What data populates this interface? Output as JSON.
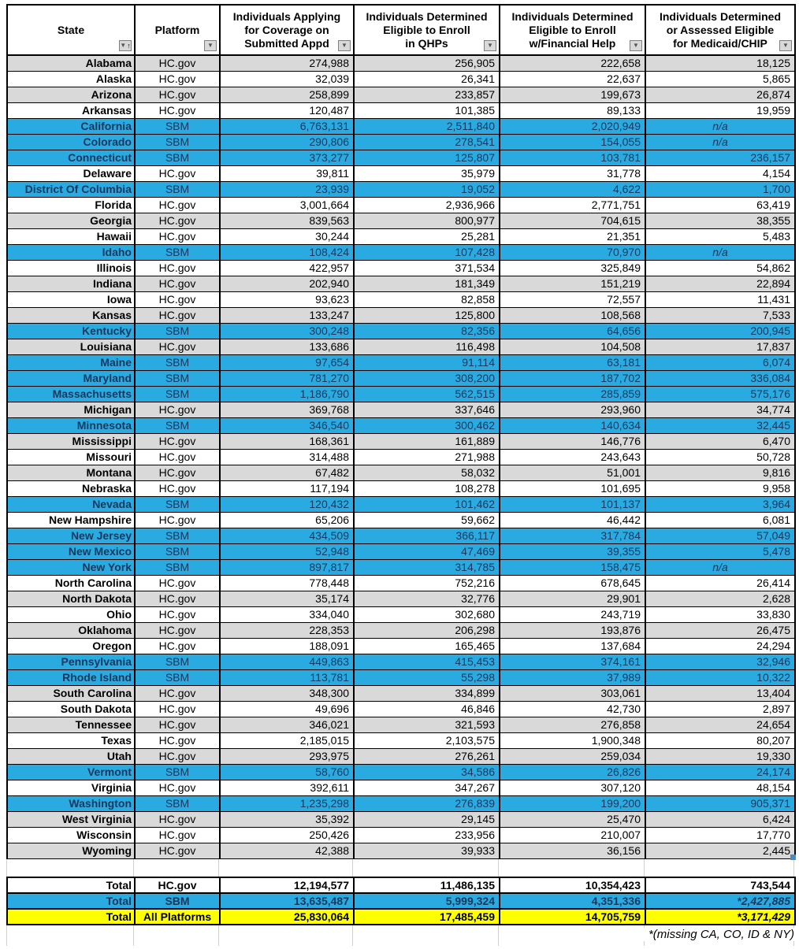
{
  "colors": {
    "row_blue": "#29abe2",
    "row_gray": "#d9d9d9",
    "total_yellow": "#ffff00",
    "blue_row_text": "#17375d",
    "border_black": "#000000",
    "faint_gridline": "#d0d0d0"
  },
  "header": {
    "columns": [
      {
        "id": "state",
        "lines": [
          "State"
        ],
        "filter": "sort-dropdown"
      },
      {
        "id": "platform",
        "lines": [
          "Platform"
        ],
        "filter": "dropdown"
      },
      {
        "id": "applying",
        "lines": [
          "Individuals Applying",
          "for Coverage on",
          "Submitted Appd"
        ],
        "filter": "dropdown"
      },
      {
        "id": "qhp",
        "lines": [
          "Individuals Determined",
          "Eligible to Enroll",
          "in QHPs"
        ],
        "filter": "dropdown"
      },
      {
        "id": "finhelp",
        "lines": [
          "Individuals Determined",
          "Eligible to Enroll",
          "w/Financial Help"
        ],
        "filter": "dropdown"
      },
      {
        "id": "medicaid",
        "lines": [
          "Individuals Determined",
          "or Assessed Eligible",
          "for Medicaid/CHIP"
        ],
        "filter": "dropdown"
      }
    ],
    "filter_icon": "▼",
    "sort_asc_icon": "↑"
  },
  "rows": [
    {
      "state": "Alabama",
      "platform": "HC.gov",
      "values": [
        "274,988",
        "256,905",
        "222,658",
        "18,125"
      ],
      "shade": "gray"
    },
    {
      "state": "Alaska",
      "platform": "HC.gov",
      "values": [
        "32,039",
        "26,341",
        "22,637",
        "5,865"
      ],
      "shade": "white"
    },
    {
      "state": "Arizona",
      "platform": "HC.gov",
      "values": [
        "258,899",
        "233,857",
        "199,673",
        "26,874"
      ],
      "shade": "gray"
    },
    {
      "state": "Arkansas",
      "platform": "HC.gov",
      "values": [
        "120,487",
        "101,385",
        "89,133",
        "19,959"
      ],
      "shade": "white"
    },
    {
      "state": "California",
      "platform": "SBM",
      "values": [
        "6,763,131",
        "2,511,840",
        "2,020,949",
        "n/a"
      ],
      "shade": "blue"
    },
    {
      "state": "Colorado",
      "platform": "SBM",
      "values": [
        "290,806",
        "278,541",
        "154,055",
        "n/a"
      ],
      "shade": "blue"
    },
    {
      "state": "Connecticut",
      "platform": "SBM",
      "values": [
        "373,277",
        "125,807",
        "103,781",
        "236,157"
      ],
      "shade": "blue"
    },
    {
      "state": "Delaware",
      "platform": "HC.gov",
      "values": [
        "39,811",
        "35,979",
        "31,778",
        "4,154"
      ],
      "shade": "white"
    },
    {
      "state": "District Of Columbia",
      "platform": "SBM",
      "values": [
        "23,939",
        "19,052",
        "4,622",
        "1,700"
      ],
      "shade": "blue"
    },
    {
      "state": "Florida",
      "platform": "HC.gov",
      "values": [
        "3,001,664",
        "2,936,966",
        "2,771,751",
        "63,419"
      ],
      "shade": "white"
    },
    {
      "state": "Georgia",
      "platform": "HC.gov",
      "values": [
        "839,563",
        "800,977",
        "704,615",
        "38,355"
      ],
      "shade": "gray"
    },
    {
      "state": "Hawaii",
      "platform": "HC.gov",
      "values": [
        "30,244",
        "25,281",
        "21,351",
        "5,483"
      ],
      "shade": "white"
    },
    {
      "state": "Idaho",
      "platform": "SBM",
      "values": [
        "108,424",
        "107,428",
        "70,970",
        "n/a"
      ],
      "shade": "blue"
    },
    {
      "state": "Illinois",
      "platform": "HC.gov",
      "values": [
        "422,957",
        "371,534",
        "325,849",
        "54,862"
      ],
      "shade": "white"
    },
    {
      "state": "Indiana",
      "platform": "HC.gov",
      "values": [
        "202,940",
        "181,349",
        "151,219",
        "22,894"
      ],
      "shade": "gray"
    },
    {
      "state": "Iowa",
      "platform": "HC.gov",
      "values": [
        "93,623",
        "82,858",
        "72,557",
        "11,431"
      ],
      "shade": "white"
    },
    {
      "state": "Kansas",
      "platform": "HC.gov",
      "values": [
        "133,247",
        "125,800",
        "108,568",
        "7,533"
      ],
      "shade": "gray"
    },
    {
      "state": "Kentucky",
      "platform": "SBM",
      "values": [
        "300,248",
        "82,356",
        "64,656",
        "200,945"
      ],
      "shade": "blue"
    },
    {
      "state": "Louisiana",
      "platform": "HC.gov",
      "values": [
        "133,686",
        "116,498",
        "104,508",
        "17,837"
      ],
      "shade": "gray"
    },
    {
      "state": "Maine",
      "platform": "SBM",
      "values": [
        "97,654",
        "91,114",
        "63,181",
        "6,074"
      ],
      "shade": "blue"
    },
    {
      "state": "Maryland",
      "platform": "SBM",
      "values": [
        "781,270",
        "308,200",
        "187,702",
        "336,084"
      ],
      "shade": "blue"
    },
    {
      "state": "Massachusetts",
      "platform": "SBM",
      "values": [
        "1,186,790",
        "562,515",
        "285,859",
        "575,176"
      ],
      "shade": "blue"
    },
    {
      "state": "Michigan",
      "platform": "HC.gov",
      "values": [
        "369,768",
        "337,646",
        "293,960",
        "34,774"
      ],
      "shade": "gray"
    },
    {
      "state": "Minnesota",
      "platform": "SBM",
      "values": [
        "346,540",
        "300,462",
        "140,634",
        "32,445"
      ],
      "shade": "blue"
    },
    {
      "state": "Mississippi",
      "platform": "HC.gov",
      "values": [
        "168,361",
        "161,889",
        "146,776",
        "6,470"
      ],
      "shade": "gray"
    },
    {
      "state": "Missouri",
      "platform": "HC.gov",
      "values": [
        "314,488",
        "271,988",
        "243,643",
        "50,728"
      ],
      "shade": "white"
    },
    {
      "state": "Montana",
      "platform": "HC.gov",
      "values": [
        "67,482",
        "58,032",
        "51,001",
        "9,816"
      ],
      "shade": "gray"
    },
    {
      "state": "Nebraska",
      "platform": "HC.gov",
      "values": [
        "117,194",
        "108,278",
        "101,695",
        "9,958"
      ],
      "shade": "white"
    },
    {
      "state": "Nevada",
      "platform": "SBM",
      "values": [
        "120,432",
        "101,462",
        "101,137",
        "3,964"
      ],
      "shade": "blue"
    },
    {
      "state": "New Hampshire",
      "platform": "HC.gov",
      "values": [
        "65,206",
        "59,662",
        "46,442",
        "6,081"
      ],
      "shade": "white"
    },
    {
      "state": "New Jersey",
      "platform": "SBM",
      "values": [
        "434,509",
        "366,117",
        "317,784",
        "57,049"
      ],
      "shade": "blue"
    },
    {
      "state": "New Mexico",
      "platform": "SBM",
      "values": [
        "52,948",
        "47,469",
        "39,355",
        "5,478"
      ],
      "shade": "blue"
    },
    {
      "state": "New York",
      "platform": "SBM",
      "values": [
        "897,817",
        "314,785",
        "158,475",
        "n/a"
      ],
      "shade": "blue"
    },
    {
      "state": "North Carolina",
      "platform": "HC.gov",
      "values": [
        "778,448",
        "752,216",
        "678,645",
        "26,414"
      ],
      "shade": "white"
    },
    {
      "state": "North Dakota",
      "platform": "HC.gov",
      "values": [
        "35,174",
        "32,776",
        "29,901",
        "2,628"
      ],
      "shade": "gray"
    },
    {
      "state": "Ohio",
      "platform": "HC.gov",
      "values": [
        "334,040",
        "302,680",
        "243,719",
        "33,830"
      ],
      "shade": "white"
    },
    {
      "state": "Oklahoma",
      "platform": "HC.gov",
      "values": [
        "228,353",
        "206,298",
        "193,876",
        "26,475"
      ],
      "shade": "gray"
    },
    {
      "state": "Oregon",
      "platform": "HC.gov",
      "values": [
        "188,091",
        "165,465",
        "137,684",
        "24,294"
      ],
      "shade": "white"
    },
    {
      "state": "Pennsylvania",
      "platform": "SBM",
      "values": [
        "449,863",
        "415,453",
        "374,161",
        "32,946"
      ],
      "shade": "blue"
    },
    {
      "state": "Rhode Island",
      "platform": "SBM",
      "values": [
        "113,781",
        "55,298",
        "37,989",
        "10,322"
      ],
      "shade": "blue"
    },
    {
      "state": "South Carolina",
      "platform": "HC.gov",
      "values": [
        "348,300",
        "334,899",
        "303,061",
        "13,404"
      ],
      "shade": "gray"
    },
    {
      "state": "South Dakota",
      "platform": "HC.gov",
      "values": [
        "49,696",
        "46,846",
        "42,730",
        "2,897"
      ],
      "shade": "white"
    },
    {
      "state": "Tennessee",
      "platform": "HC.gov",
      "values": [
        "346,021",
        "321,593",
        "276,858",
        "24,654"
      ],
      "shade": "gray"
    },
    {
      "state": "Texas",
      "platform": "HC.gov",
      "values": [
        "2,185,015",
        "2,103,575",
        "1,900,348",
        "80,207"
      ],
      "shade": "white"
    },
    {
      "state": "Utah",
      "platform": "HC.gov",
      "values": [
        "293,975",
        "276,261",
        "259,034",
        "19,330"
      ],
      "shade": "gray"
    },
    {
      "state": "Vermont",
      "platform": "SBM",
      "values": [
        "58,760",
        "34,586",
        "26,826",
        "24,174"
      ],
      "shade": "blue"
    },
    {
      "state": "Virginia",
      "platform": "HC.gov",
      "values": [
        "392,611",
        "347,267",
        "307,120",
        "48,154"
      ],
      "shade": "white"
    },
    {
      "state": "Washington",
      "platform": "SBM",
      "values": [
        "1,235,298",
        "276,839",
        "199,200",
        "905,371"
      ],
      "shade": "blue"
    },
    {
      "state": "West Virginia",
      "platform": "HC.gov",
      "values": [
        "35,392",
        "29,145",
        "25,470",
        "6,424"
      ],
      "shade": "gray"
    },
    {
      "state": "Wisconsin",
      "platform": "HC.gov",
      "values": [
        "250,426",
        "233,956",
        "210,007",
        "17,770"
      ],
      "shade": "white"
    },
    {
      "state": "Wyoming",
      "platform": "HC.gov",
      "values": [
        "42,388",
        "39,933",
        "36,156",
        "2,445"
      ],
      "shade": "gray"
    }
  ],
  "totals": [
    {
      "label": "Total",
      "platform": "HC.gov",
      "values": [
        "12,194,577",
        "11,486,135",
        "10,354,423",
        "743,544"
      ],
      "shade": "white",
      "last_italic": false
    },
    {
      "label": "Total",
      "platform": "SBM",
      "values": [
        "13,635,487",
        "5,999,324",
        "4,351,336",
        "*2,427,885"
      ],
      "shade": "blue",
      "last_italic": true
    },
    {
      "label": "Total",
      "platform": "All Platforms",
      "values": [
        "25,830,064",
        "17,485,459",
        "14,705,759",
        "*3,171,429"
      ],
      "shade": "yellow",
      "last_italic": true
    }
  ],
  "footnote": "*(missing CA, CO, ID & NY)"
}
